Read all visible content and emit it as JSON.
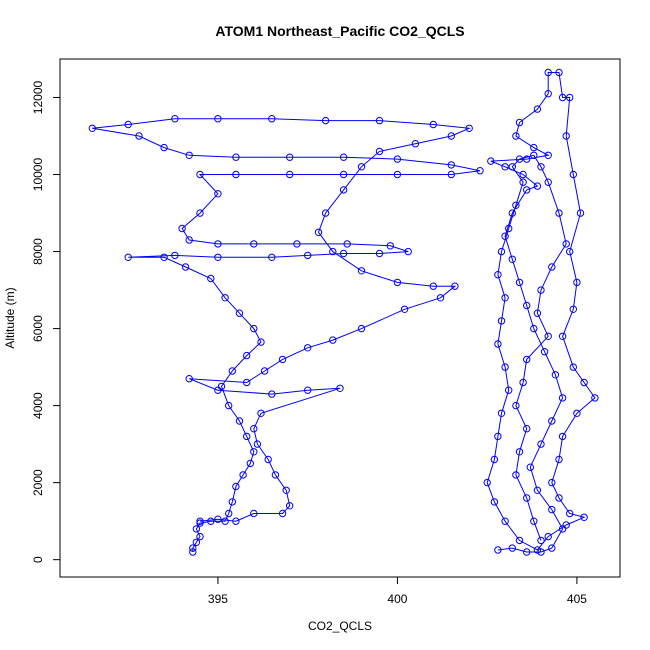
{
  "chart_data": {
    "type": "scatter",
    "title": "ATOM1 Northeast_Pacific CO2_QCLS",
    "xlabel": "CO2_QCLS",
    "ylabel": "Altitude (m)",
    "xlim": [
      390.6,
      406.2
    ],
    "ylim": [
      -450,
      13000
    ],
    "xticks": [
      395,
      400,
      405
    ],
    "yticks": [
      0,
      2000,
      4000,
      6000,
      8000,
      10000,
      12000
    ],
    "color": "#0000ff",
    "marker": "open-circle",
    "connected": true,
    "grid": false,
    "legend": "none",
    "series": [
      {
        "values": [
          [
            394.3,
            200
          ],
          [
            394.3,
            300
          ],
          [
            394.4,
            450
          ],
          [
            394.5,
            600
          ],
          [
            394.4,
            800
          ],
          [
            394.5,
            950
          ],
          [
            394.8,
            1000
          ],
          [
            395.2,
            1000
          ],
          [
            395.3,
            1200
          ],
          [
            395.4,
            1500
          ],
          [
            395.5,
            1900
          ],
          [
            395.7,
            2200
          ],
          [
            395.9,
            2500
          ],
          [
            396.0,
            2800
          ],
          [
            395.8,
            3200
          ],
          [
            395.6,
            3600
          ],
          [
            395.3,
            4000
          ],
          [
            395.1,
            4500
          ],
          [
            395.4,
            4900
          ],
          [
            395.8,
            5300
          ],
          [
            396.2,
            5650
          ],
          [
            396.0,
            6000
          ],
          [
            395.6,
            6400
          ],
          [
            395.2,
            6800
          ],
          [
            394.8,
            7300
          ],
          [
            394.1,
            7600
          ],
          [
            393.5,
            7850
          ],
          [
            392.5,
            7850
          ],
          [
            393.8,
            7900
          ],
          [
            395.0,
            7850
          ],
          [
            396.5,
            7850
          ],
          [
            397.5,
            7900
          ],
          [
            398.5,
            7950
          ],
          [
            399.5,
            7950
          ],
          [
            400.3,
            8000
          ],
          [
            399.8,
            8150
          ],
          [
            398.6,
            8200
          ],
          [
            397.2,
            8200
          ],
          [
            396.0,
            8200
          ],
          [
            395.0,
            8200
          ],
          [
            394.2,
            8300
          ],
          [
            394.0,
            8600
          ],
          [
            394.5,
            9000
          ],
          [
            395.0,
            9500
          ],
          [
            394.5,
            10000
          ],
          [
            395.5,
            10000
          ],
          [
            397.0,
            10000
          ],
          [
            398.5,
            10000
          ],
          [
            400.0,
            10000
          ],
          [
            401.5,
            10000
          ],
          [
            402.3,
            10100
          ],
          [
            401.5,
            10250
          ],
          [
            400.0,
            10400
          ],
          [
            398.5,
            10450
          ],
          [
            397.0,
            10450
          ],
          [
            395.5,
            10450
          ],
          [
            394.2,
            10500
          ],
          [
            393.5,
            10700
          ],
          [
            392.8,
            11000
          ],
          [
            391.5,
            11200
          ],
          [
            392.5,
            11300
          ],
          [
            393.8,
            11450
          ],
          [
            395.0,
            11450
          ],
          [
            396.5,
            11450
          ],
          [
            398.0,
            11400
          ],
          [
            399.5,
            11400
          ],
          [
            401.0,
            11300
          ],
          [
            402.0,
            11200
          ],
          [
            401.5,
            11000
          ],
          [
            400.5,
            10800
          ],
          [
            399.5,
            10600
          ],
          [
            399.0,
            10200
          ],
          [
            398.5,
            9600
          ],
          [
            398.0,
            9000
          ],
          [
            397.8,
            8500
          ],
          [
            398.2,
            8000
          ],
          [
            399.0,
            7500
          ],
          [
            400.0,
            7200
          ],
          [
            401.0,
            7100
          ],
          [
            401.6,
            7100
          ],
          [
            401.2,
            6800
          ],
          [
            400.2,
            6500
          ],
          [
            399.0,
            6000
          ],
          [
            398.2,
            5700
          ],
          [
            397.5,
            5500
          ],
          [
            396.8,
            5200
          ],
          [
            396.3,
            4900
          ],
          [
            395.8,
            4600
          ],
          [
            394.2,
            4700
          ],
          [
            395.0,
            4400
          ],
          [
            396.5,
            4300
          ],
          [
            397.5,
            4400
          ],
          [
            398.4,
            4450
          ],
          [
            396.2,
            3800
          ],
          [
            396.0,
            3400
          ],
          [
            396.1,
            3000
          ],
          [
            396.4,
            2600
          ],
          [
            396.6,
            2200
          ],
          [
            396.9,
            1800
          ],
          [
            397.0,
            1400
          ],
          [
            396.8,
            1200
          ],
          [
            396.0,
            1200
          ],
          [
            395.5,
            1000
          ],
          [
            395.0,
            1050
          ],
          [
            394.5,
            1000
          ]
        ]
      },
      {
        "values": [
          [
            402.8,
            250
          ],
          [
            403.2,
            300
          ],
          [
            403.6,
            200
          ],
          [
            404.0,
            200
          ],
          [
            404.3,
            300
          ],
          [
            404.6,
            800
          ],
          [
            404.3,
            1300
          ],
          [
            403.9,
            1800
          ],
          [
            403.7,
            2400
          ],
          [
            404.0,
            3000
          ],
          [
            404.3,
            3600
          ],
          [
            404.6,
            4200
          ],
          [
            404.4,
            4800
          ],
          [
            404.1,
            5400
          ],
          [
            403.8,
            6000
          ],
          [
            403.6,
            6600
          ],
          [
            403.4,
            7200
          ],
          [
            403.2,
            7800
          ],
          [
            403.0,
            8400
          ],
          [
            403.2,
            9000
          ],
          [
            403.6,
            9600
          ],
          [
            403.9,
            9700
          ],
          [
            403.5,
            10000
          ],
          [
            403.0,
            10200
          ],
          [
            402.6,
            10350
          ],
          [
            403.6,
            10400
          ],
          [
            404.2,
            10500
          ],
          [
            403.8,
            10700
          ],
          [
            403.3,
            11000
          ],
          [
            403.4,
            11350
          ],
          [
            403.9,
            11700
          ],
          [
            404.2,
            12100
          ],
          [
            404.2,
            12650
          ],
          [
            404.5,
            12650
          ],
          [
            404.6,
            12000
          ],
          [
            404.8,
            12000
          ],
          [
            404.7,
            11000
          ],
          [
            404.9,
            10000
          ],
          [
            405.1,
            9000
          ],
          [
            404.8,
            8000
          ],
          [
            405.0,
            7200
          ],
          [
            404.9,
            6500
          ],
          [
            404.6,
            5800
          ],
          [
            404.9,
            5000
          ],
          [
            405.2,
            4600
          ],
          [
            405.5,
            4200
          ],
          [
            405.0,
            3800
          ],
          [
            404.6,
            3200
          ],
          [
            404.5,
            2600
          ],
          [
            404.3,
            2000
          ],
          [
            404.5,
            1600
          ],
          [
            404.8,
            1200
          ],
          [
            405.2,
            1100
          ],
          [
            404.7,
            900
          ],
          [
            404.2,
            600
          ],
          [
            403.9,
            250
          ],
          [
            403.4,
            500
          ],
          [
            403.0,
            1000
          ],
          [
            402.7,
            1500
          ],
          [
            402.5,
            2000
          ],
          [
            402.7,
            2600
          ],
          [
            402.8,
            3200
          ],
          [
            402.9,
            3800
          ],
          [
            403.1,
            4400
          ],
          [
            403.0,
            5000
          ],
          [
            402.8,
            5600
          ],
          [
            402.9,
            6200
          ],
          [
            403.0,
            6800
          ],
          [
            402.8,
            7400
          ],
          [
            402.9,
            8000
          ],
          [
            403.1,
            8600
          ],
          [
            403.3,
            9200
          ],
          [
            403.5,
            9800
          ],
          [
            403.2,
            10200
          ],
          [
            403.4,
            10400
          ],
          [
            403.8,
            10500
          ],
          [
            404.0,
            10200
          ],
          [
            404.2,
            9800
          ],
          [
            404.5,
            9000
          ],
          [
            404.7,
            8200
          ],
          [
            404.3,
            7600
          ],
          [
            404.0,
            7000
          ],
          [
            403.9,
            6400
          ],
          [
            404.2,
            5800
          ],
          [
            403.6,
            5200
          ],
          [
            403.5,
            4600
          ],
          [
            403.3,
            4000
          ],
          [
            403.6,
            3400
          ],
          [
            403.4,
            2800
          ],
          [
            403.3,
            2200
          ],
          [
            403.6,
            1600
          ],
          [
            403.8,
            1000
          ],
          [
            404.0,
            500
          ]
        ]
      }
    ]
  }
}
